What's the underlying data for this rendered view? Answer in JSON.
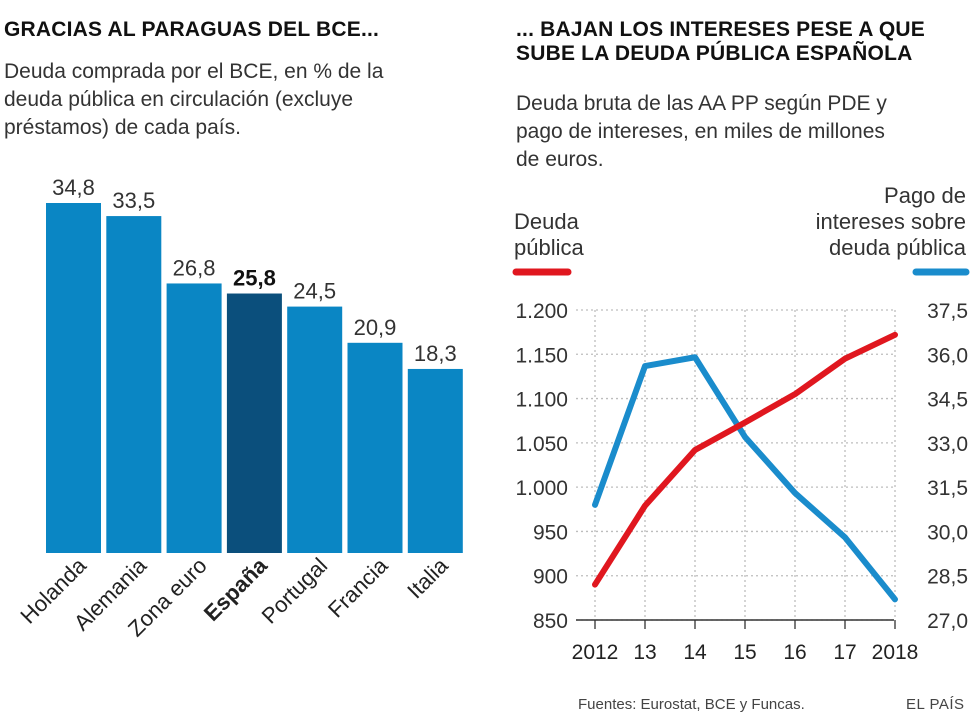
{
  "left_panel": {
    "title": "GRACIAS AL PARAGUAS DEL BCE...",
    "subtitle_lines": [
      "Deuda comprada por el BCE, en % de la",
      "deuda pública en circulación (excluye",
      "préstamos) de cada país."
    ]
  },
  "right_panel": {
    "title_lines": [
      "... BAJAN LOS INTERESES PESE A QUE",
      "SUBE LA DEUDA PÚBLICA ESPAÑOLA"
    ],
    "subtitle_lines": [
      "Deuda bruta de las AA PP según PDE y",
      "pago de intereses, en miles de millones",
      "de euros."
    ]
  },
  "footer": {
    "source": "Fuentes: Eurostat, BCE y Funcas.",
    "brand": "EL PAÍS"
  },
  "colors": {
    "bar": "#0a86c4",
    "bar_highlight": "#0b4f7c",
    "debt_line": "#e0171f",
    "interest_line": "#1a8ccc",
    "grid": "#bdbdbd"
  },
  "chart_data": [
    {
      "type": "bar",
      "title": "GRACIAS AL PARAGUAS DEL BCE...",
      "ylabel": "Deuda comprada por el BCE, en % de la deuda pública en circulación",
      "categories": [
        "Holanda",
        "Alemania",
        "Zona euro",
        "España",
        "Portugal",
        "Francia",
        "Italia"
      ],
      "values": [
        34.8,
        33.5,
        26.8,
        25.8,
        24.5,
        20.9,
        18.3
      ],
      "value_labels": [
        "34,8",
        "33,5",
        "26,8",
        "25,8",
        "24,5",
        "20,9",
        "18,3"
      ],
      "highlight": "España",
      "ylim": [
        0,
        35
      ]
    },
    {
      "type": "line",
      "title": "... BAJAN LOS INTERESES PESE A QUE SUBE LA DEUDA PÚBLICA ESPAÑOLA",
      "x": [
        2012,
        2013,
        2014,
        2015,
        2016,
        2017,
        2018
      ],
      "x_tick_labels": [
        "2012",
        "13",
        "14",
        "15",
        "16",
        "17",
        "2018"
      ],
      "series": [
        {
          "name": "Deuda pública",
          "axis": "left",
          "values": [
            890,
            979,
            1042,
            1073,
            1105,
            1145,
            1172
          ]
        },
        {
          "name": "Pago de intereses sobre deuda pública",
          "axis": "right",
          "values": [
            30.9,
            35.6,
            35.9,
            33.2,
            31.3,
            29.8,
            27.7
          ]
        }
      ],
      "legend_labels": {
        "debt": [
          "Deuda",
          "pública"
        ],
        "interest": [
          "Pago de",
          "intereses sobre",
          "deuda pública"
        ]
      },
      "left_axis": {
        "ylim": [
          850,
          1200
        ],
        "ticks": [
          850,
          900,
          950,
          1000,
          1050,
          1100,
          1150,
          1200
        ],
        "tick_labels": [
          "850",
          "900",
          "950",
          "1.000",
          "1.050",
          "1.100",
          "1.150",
          "1.200"
        ]
      },
      "right_axis": {
        "ylim": [
          27.0,
          37.5
        ],
        "ticks": [
          27.0,
          28.5,
          30.0,
          31.5,
          33.0,
          34.5,
          36.0,
          37.5
        ],
        "tick_labels": [
          "27,0",
          "28,5",
          "30,0",
          "31,5",
          "33,0",
          "34,5",
          "36,0",
          "37,5"
        ]
      },
      "grid": true
    }
  ]
}
